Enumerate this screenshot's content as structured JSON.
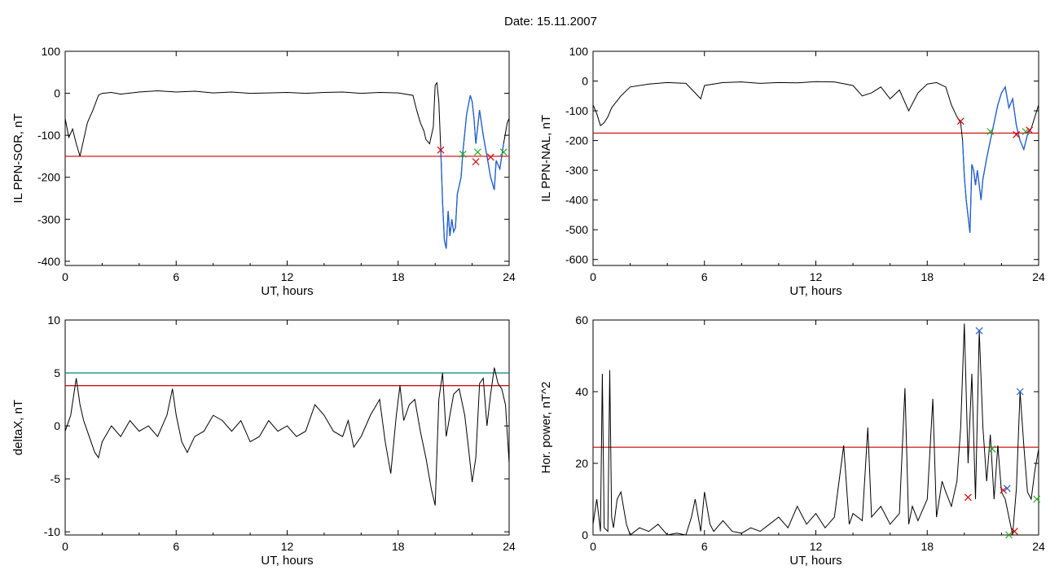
{
  "page": {
    "title": "Date:  15.11.2007"
  },
  "colors": {
    "trace": "#000000",
    "threshold_red": "#cc0000",
    "threshold_teal": "#00897b",
    "substorm_segment": "#1f5fd6",
    "marker_red": "#d40000",
    "marker_green": "#22aa22",
    "marker_blue": "#1f5fd6"
  },
  "chart_data": [
    {
      "id": "il-sor",
      "type": "line",
      "xlabel": "UT, hours",
      "ylabel": "IL PPN-SOR, nT",
      "xlim": [
        0,
        24
      ],
      "ylim": [
        -410,
        100
      ],
      "xticks": [
        0,
        6,
        12,
        18,
        24
      ],
      "yticks": [
        100,
        0,
        -100,
        -200,
        -300,
        -400
      ],
      "thresholds": [
        {
          "y": -150,
          "color": "red"
        }
      ],
      "highlight": {
        "from": 20.3,
        "to": 23.8,
        "color": "blue"
      },
      "markers": [
        {
          "x": 20.3,
          "y": -135,
          "color": "red"
        },
        {
          "x": 21.5,
          "y": -145,
          "color": "green"
        },
        {
          "x": 22.2,
          "y": -163,
          "color": "red"
        },
        {
          "x": 22.3,
          "y": -140,
          "color": "green"
        },
        {
          "x": 23.0,
          "y": -152,
          "color": "red"
        },
        {
          "x": 23.7,
          "y": -140,
          "color": "green"
        }
      ],
      "series": [
        {
          "x": [
            0,
            0.2,
            0.4,
            0.6,
            0.8,
            1.0,
            1.2,
            1.5,
            1.8,
            2.0,
            2.5,
            3,
            4,
            5,
            6,
            7,
            8,
            9,
            10,
            11,
            12,
            13,
            14,
            15,
            16,
            17,
            18,
            18.8,
            19.0,
            19.2,
            19.4,
            19.5,
            19.7,
            19.9,
            20.0,
            20.1,
            20.2,
            20.3,
            20.4,
            20.5,
            20.6,
            20.7,
            20.8,
            20.9,
            21.0,
            21.1,
            21.2,
            21.4,
            21.5,
            21.7,
            21.9,
            22.0,
            22.1,
            22.2,
            22.3,
            22.4,
            22.6,
            22.8,
            23.0,
            23.2,
            23.3,
            23.5,
            23.7,
            23.9,
            24
          ],
          "y": [
            -60,
            -105,
            -85,
            -120,
            -150,
            -110,
            -70,
            -40,
            -5,
            0,
            2,
            -2,
            3,
            6,
            3,
            5,
            1,
            3,
            0,
            1,
            2,
            0,
            2,
            3,
            0,
            2,
            1,
            -5,
            -40,
            -70,
            -90,
            -110,
            -120,
            -80,
            20,
            25,
            -20,
            -130,
            -260,
            -350,
            -370,
            -280,
            -340,
            -300,
            -330,
            -320,
            -240,
            -200,
            -140,
            -50,
            -5,
            -20,
            -60,
            -120,
            -80,
            -40,
            -100,
            -150,
            -200,
            -230,
            -160,
            -180,
            -120,
            -70,
            -60
          ]
        }
      ]
    },
    {
      "id": "il-nal",
      "type": "line",
      "xlabel": "UT, hours",
      "ylabel": "IL PPN-NAL, nT",
      "xlim": [
        0,
        24
      ],
      "ylim": [
        -620,
        100
      ],
      "xticks": [
        0,
        6,
        12,
        18,
        24
      ],
      "yticks": [
        100,
        0,
        -100,
        -200,
        -300,
        -400,
        -500,
        -600
      ],
      "thresholds": [
        {
          "y": -175,
          "color": "red"
        }
      ],
      "highlight": {
        "from": 19.9,
        "to": 23.6,
        "color": "blue"
      },
      "markers": [
        {
          "x": 19.8,
          "y": -135,
          "color": "red"
        },
        {
          "x": 21.4,
          "y": -170,
          "color": "green"
        },
        {
          "x": 22.8,
          "y": -180,
          "color": "red"
        },
        {
          "x": 23.3,
          "y": -170,
          "color": "green"
        },
        {
          "x": 23.5,
          "y": -165,
          "color": "red"
        }
      ],
      "series": [
        {
          "x": [
            0,
            0.2,
            0.4,
            0.6,
            0.8,
            1.0,
            1.5,
            2.0,
            3,
            4,
            5,
            5.5,
            5.8,
            6,
            7,
            8,
            9,
            10,
            11,
            12,
            13,
            14,
            14.5,
            15,
            15.5,
            16,
            16.5,
            17,
            17.5,
            18,
            18.5,
            19.0,
            19.3,
            19.6,
            19.8,
            19.9,
            20.0,
            20.1,
            20.3,
            20.4,
            20.5,
            20.6,
            20.7,
            20.9,
            21.0,
            21.2,
            21.4,
            21.6,
            21.8,
            22.0,
            22.2,
            22.4,
            22.6,
            22.8,
            23.0,
            23.2,
            23.4,
            23.6,
            23.8,
            24
          ],
          "y": [
            -80,
            -110,
            -150,
            -140,
            -120,
            -90,
            -50,
            -20,
            -10,
            -5,
            -8,
            -40,
            -60,
            -15,
            -5,
            -3,
            -8,
            -5,
            -6,
            -2,
            -3,
            -15,
            -50,
            -40,
            -20,
            -60,
            -30,
            -100,
            -40,
            -10,
            -5,
            -20,
            -80,
            -120,
            -140,
            -200,
            -320,
            -400,
            -510,
            -280,
            -300,
            -350,
            -300,
            -400,
            -330,
            -260,
            -200,
            -140,
            -80,
            -40,
            -20,
            -90,
            -60,
            -150,
            -200,
            -230,
            -180,
            -160,
            -120,
            -80
          ]
        }
      ]
    },
    {
      "id": "deltax",
      "type": "line",
      "xlabel": "UT, hours",
      "ylabel": "deltaX, nT",
      "xlim": [
        0,
        24
      ],
      "ylim": [
        -10.3,
        10
      ],
      "xticks": [
        0,
        6,
        12,
        18,
        24
      ],
      "yticks": [
        10,
        5,
        0,
        -5,
        -10
      ],
      "thresholds": [
        {
          "y": 5.0,
          "color": "teal"
        },
        {
          "y": 3.8,
          "color": "red"
        }
      ],
      "series": [
        {
          "x": [
            0,
            0.3,
            0.6,
            0.8,
            1.0,
            1.3,
            1.6,
            1.8,
            2.0,
            2.5,
            3,
            3.5,
            4,
            4.5,
            5,
            5.5,
            5.8,
            6,
            6.3,
            6.6,
            7,
            7.5,
            8,
            8.5,
            9,
            9.5,
            10,
            10.5,
            11,
            11.5,
            12,
            12.5,
            13,
            13.5,
            14,
            14.5,
            15,
            15.3,
            15.6,
            16,
            16.5,
            17,
            17.3,
            17.6,
            17.9,
            18.1,
            18.3,
            18.6,
            18.9,
            19.2,
            19.5,
            19.8,
            20.0,
            20.2,
            20.4,
            20.6,
            20.8,
            21.0,
            21.3,
            21.6,
            21.8,
            22.0,
            22.2,
            22.4,
            22.6,
            22.8,
            23.0,
            23.2,
            23.4,
            23.6,
            23.8,
            24
          ],
          "y": [
            -0.5,
            1.0,
            4.5,
            2.0,
            0.5,
            -1.0,
            -2.5,
            -3.0,
            -1.5,
            0,
            -1.0,
            0.5,
            -0.5,
            0,
            -1.0,
            1.0,
            3.5,
            1.0,
            -1.5,
            -2.5,
            -1.0,
            -0.5,
            1.0,
            0.5,
            -0.5,
            0.5,
            -1.5,
            -1.0,
            0.5,
            -0.5,
            0,
            -1.0,
            -0.5,
            2.0,
            1.0,
            -0.5,
            -1.0,
            0.5,
            -2.0,
            -1.0,
            1.0,
            2.5,
            -1.5,
            -4.5,
            1.0,
            3.8,
            0.5,
            2.0,
            2.5,
            -0.5,
            -3.0,
            -6.0,
            -7.5,
            2.5,
            5.0,
            -1.0,
            1.0,
            3.0,
            3.5,
            1.0,
            -2.0,
            -5.3,
            -3.0,
            4.0,
            4.5,
            0,
            3.0,
            5.5,
            4.0,
            3.5,
            2.0,
            -3.5
          ]
        }
      ]
    },
    {
      "id": "hor-power",
      "type": "line",
      "xlabel": "UT, hours",
      "ylabel": "Hor. power, nT^2",
      "xlim": [
        0,
        24
      ],
      "ylim": [
        0,
        60
      ],
      "xticks": [
        0,
        6,
        12,
        18,
        24
      ],
      "yticks": [
        60,
        40,
        20,
        0
      ],
      "thresholds": [
        {
          "y": 24.5,
          "color": "red"
        }
      ],
      "markers": [
        {
          "x": 20.2,
          "y": 10.5,
          "color": "red"
        },
        {
          "x": 20.8,
          "y": 57,
          "color": "blue"
        },
        {
          "x": 21.5,
          "y": 24,
          "color": "green"
        },
        {
          "x": 22.1,
          "y": 12.5,
          "color": "red"
        },
        {
          "x": 22.3,
          "y": 13,
          "color": "blue"
        },
        {
          "x": 22.4,
          "y": 0,
          "color": "green"
        },
        {
          "x": 22.7,
          "y": 1,
          "color": "red"
        },
        {
          "x": 23.0,
          "y": 40,
          "color": "blue"
        },
        {
          "x": 23.9,
          "y": 10,
          "color": "green"
        }
      ],
      "series": [
        {
          "x": [
            0,
            0.2,
            0.4,
            0.5,
            0.6,
            0.8,
            0.9,
            1.0,
            1.1,
            1.3,
            1.5,
            1.8,
            2.0,
            2.5,
            3,
            3.5,
            4,
            4.5,
            5,
            5.3,
            5.5,
            5.8,
            6,
            6.3,
            6.5,
            7,
            7.5,
            8,
            8.5,
            9,
            9.5,
            10,
            10.5,
            11,
            11.5,
            12,
            12.5,
            13,
            13.5,
            13.8,
            14,
            14.5,
            14.8,
            15,
            15.5,
            16,
            16.5,
            16.8,
            17,
            17.2,
            17.5,
            18,
            18.3,
            18.5,
            18.8,
            19.0,
            19.3,
            19.6,
            19.8,
            20.0,
            20.2,
            20.4,
            20.6,
            20.8,
            21.0,
            21.2,
            21.4,
            21.6,
            21.8,
            22.0,
            22.2,
            22.4,
            22.6,
            22.8,
            23.0,
            23.2,
            23.4,
            23.6,
            23.8,
            24
          ],
          "y": [
            3,
            10,
            1,
            45,
            2,
            1,
            46,
            5,
            2,
            10,
            12,
            3,
            0,
            2,
            1,
            3,
            0,
            0.5,
            0,
            5,
            10,
            1,
            12,
            3,
            1,
            4,
            1,
            0.5,
            2,
            1,
            3,
            5,
            2,
            8,
            3,
            6,
            2,
            5,
            25,
            3,
            6,
            4,
            30,
            5,
            8,
            3,
            6,
            41,
            3,
            8,
            4,
            10,
            38,
            5,
            15,
            12,
            8,
            15,
            30,
            59,
            20,
            45,
            10,
            57,
            30,
            15,
            28,
            10,
            25,
            12,
            10,
            5,
            0,
            13,
            40,
            25,
            12,
            10,
            18,
            24
          ]
        }
      ]
    }
  ]
}
